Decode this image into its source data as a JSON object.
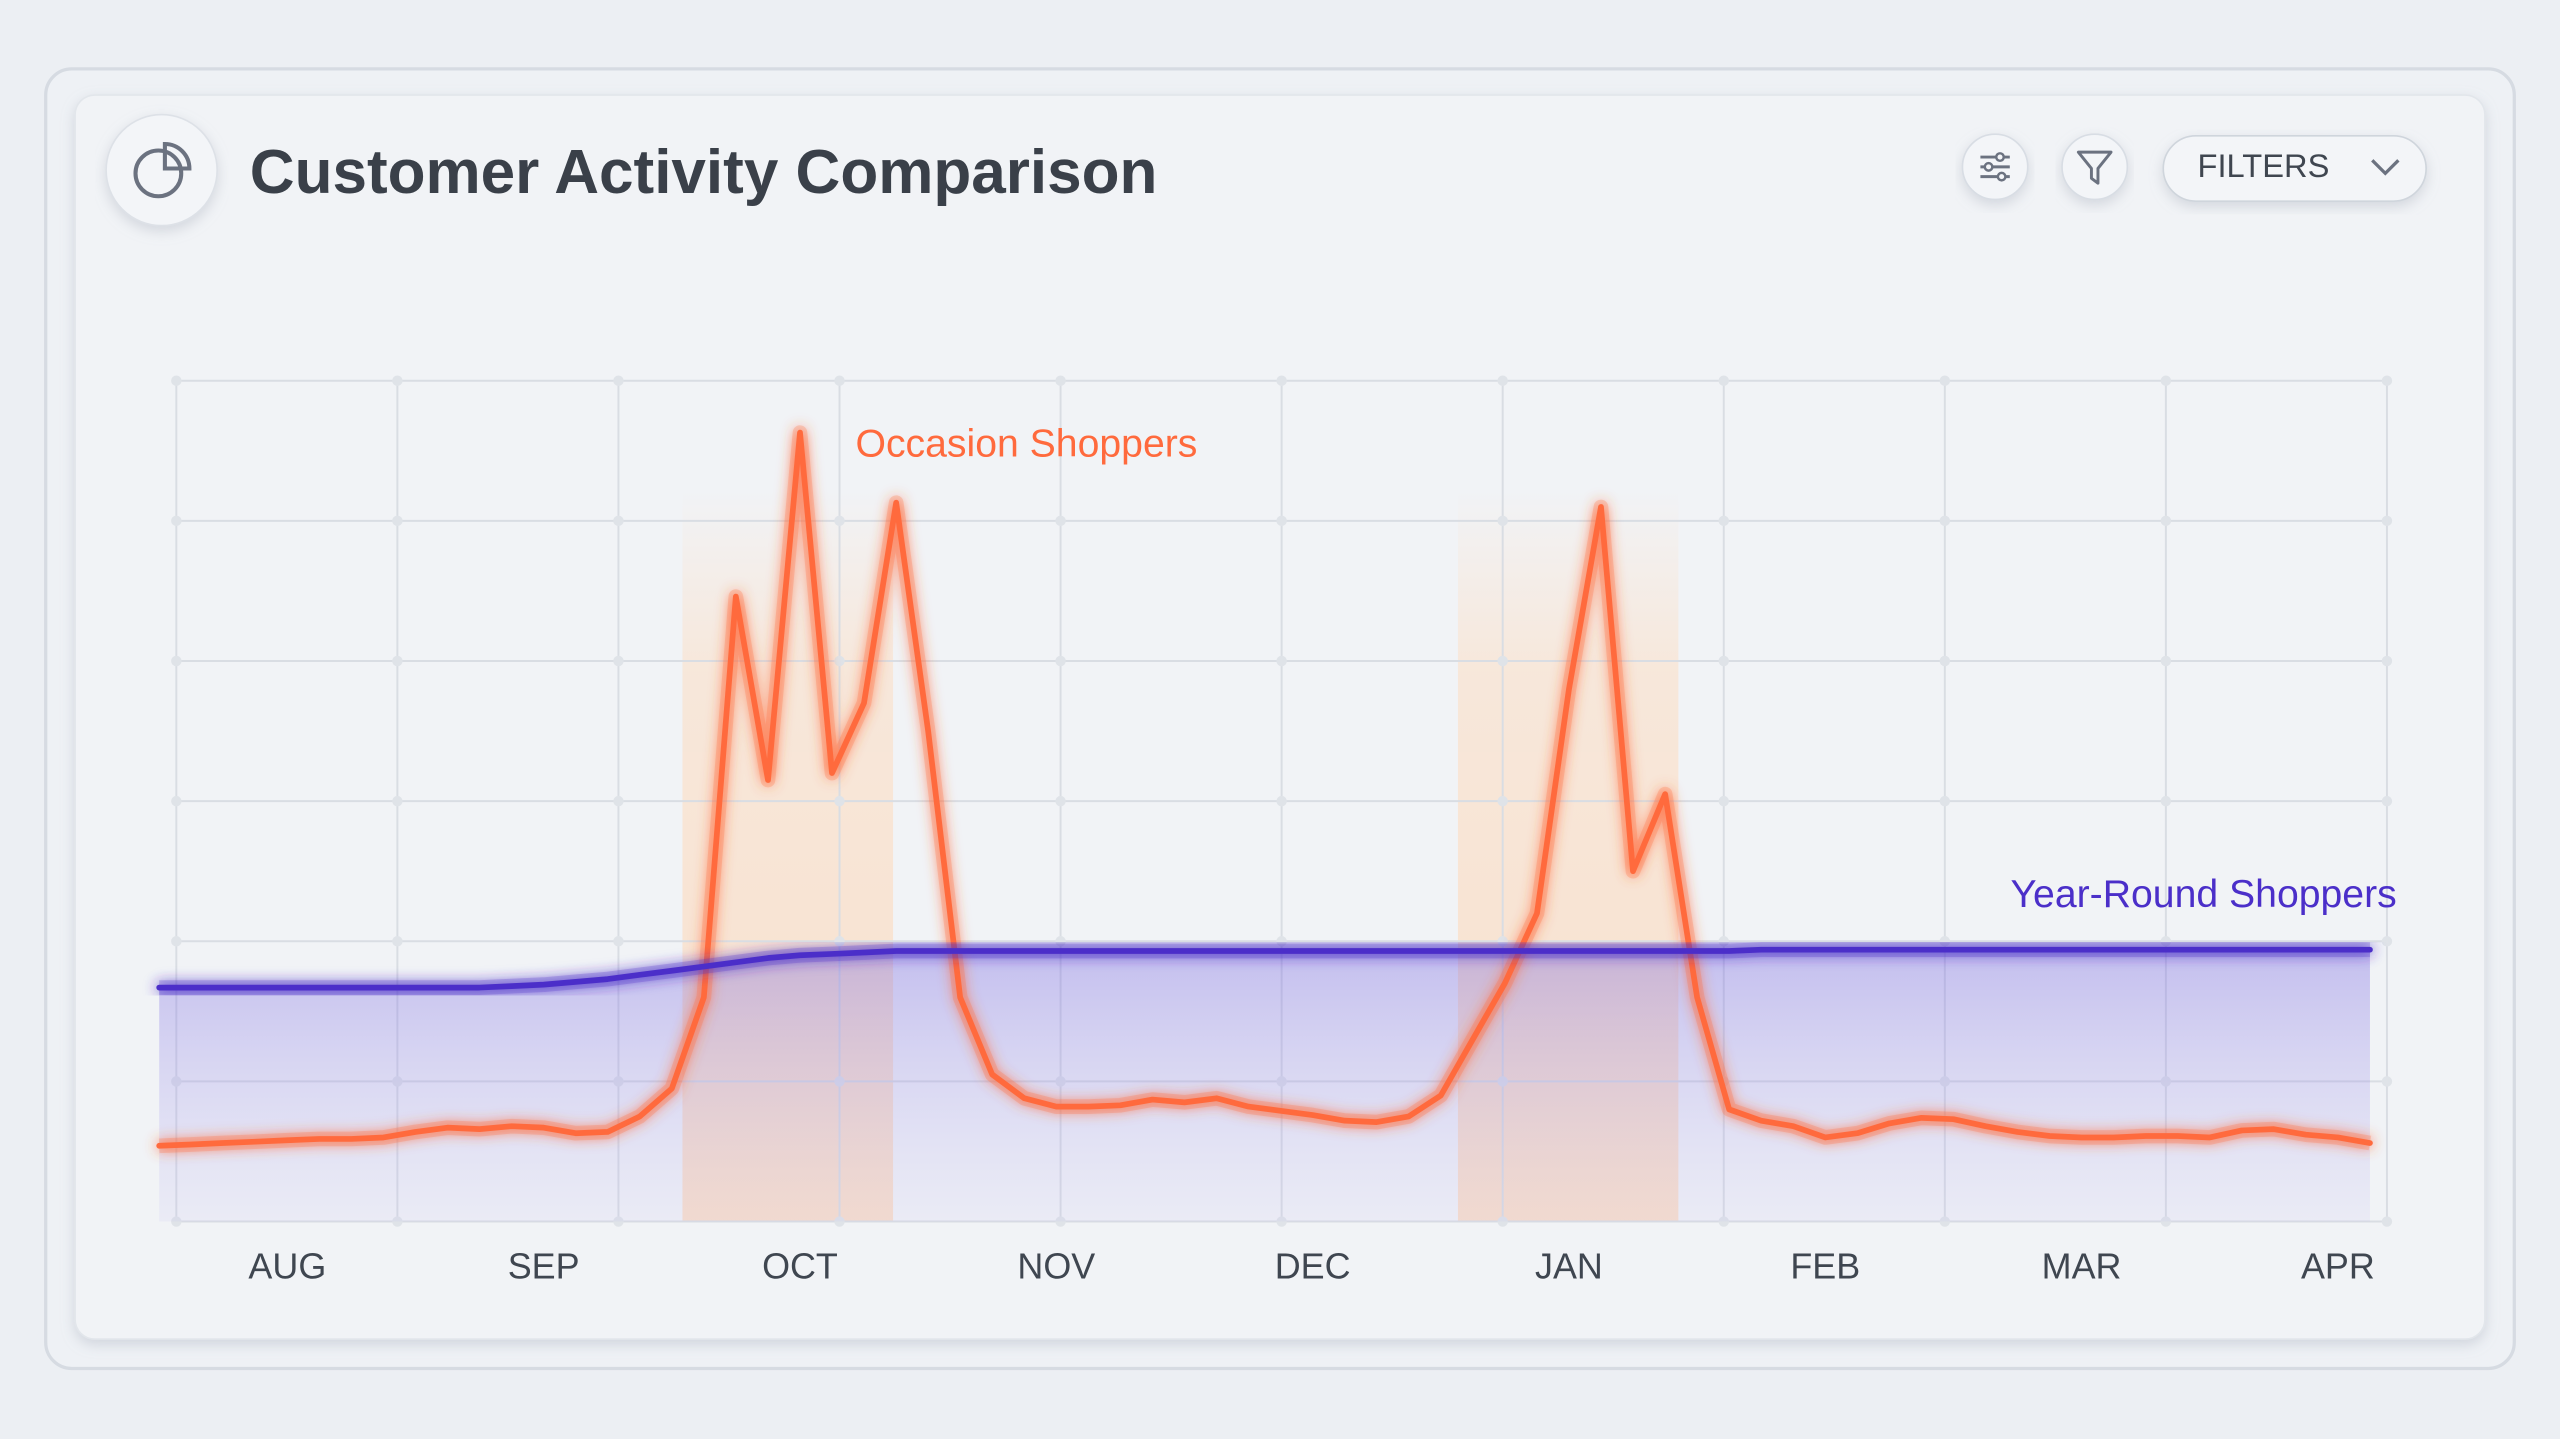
{
  "chart_data": {
    "type": "line",
    "title": "Customer Activity Comparison",
    "categories": [
      null,
      null,
      null,
      null,
      "AUG",
      null,
      null,
      null,
      null,
      null,
      null,
      null,
      "SEP",
      null,
      null,
      null,
      null,
      null,
      null,
      null,
      "OCT",
      null,
      null,
      null,
      null,
      null,
      null,
      null,
      "NOV",
      null,
      null,
      null,
      null,
      null,
      null,
      null,
      "DEC",
      null,
      null,
      null,
      null,
      null,
      null,
      null,
      "JAN",
      null,
      null,
      null,
      null,
      null,
      null,
      null,
      "FEB",
      null,
      null,
      null,
      null,
      null,
      null,
      null,
      "MAR",
      null,
      null,
      null,
      null,
      null,
      null,
      null,
      "APR",
      null
    ],
    "series": [
      {
        "name": "Occasion Shoppers",
        "color": "#ff6a3d",
        "values": [
          0.54,
          0.55,
          0.56,
          0.57,
          0.58,
          0.59,
          0.59,
          0.6,
          0.64,
          0.67,
          0.66,
          0.68,
          0.67,
          0.63,
          0.64,
          0.75,
          0.95,
          1.6,
          4.46,
          3.15,
          5.63,
          3.2,
          3.7,
          5.13,
          3.5,
          1.6,
          1.05,
          0.88,
          0.82,
          0.82,
          0.83,
          0.87,
          0.85,
          0.88,
          0.82,
          0.79,
          0.76,
          0.72,
          0.71,
          0.75,
          0.9,
          1.3,
          1.7,
          2.2,
          3.8,
          5.1,
          2.5,
          3.05,
          1.6,
          0.8,
          0.72,
          0.68,
          0.6,
          0.63,
          0.7,
          0.74,
          0.73,
          0.68,
          0.64,
          0.61,
          0.6,
          0.6,
          0.61,
          0.61,
          0.6,
          0.65,
          0.66,
          0.62,
          0.6,
          0.56
        ]
      },
      {
        "name": "Year-Round Shoppers",
        "color": "#4b2fc9",
        "values": [
          1.67,
          1.67,
          1.67,
          1.67,
          1.67,
          1.67,
          1.67,
          1.67,
          1.67,
          1.67,
          1.67,
          1.68,
          1.69,
          1.71,
          1.73,
          1.76,
          1.79,
          1.82,
          1.85,
          1.88,
          1.9,
          1.91,
          1.92,
          1.93,
          1.93,
          1.93,
          1.93,
          1.93,
          1.93,
          1.93,
          1.93,
          1.93,
          1.93,
          1.93,
          1.93,
          1.93,
          1.93,
          1.93,
          1.93,
          1.93,
          1.93,
          1.93,
          1.93,
          1.93,
          1.93,
          1.93,
          1.93,
          1.93,
          1.93,
          1.93,
          1.94,
          1.94,
          1.94,
          1.94,
          1.94,
          1.94,
          1.94,
          1.94,
          1.94,
          1.94,
          1.94,
          1.94,
          1.94,
          1.94,
          1.94,
          1.94,
          1.94,
          1.94,
          1.94,
          1.94
        ]
      }
    ],
    "ylim": [
      0,
      6
    ],
    "yticks": [
      0,
      1,
      2,
      3,
      4,
      5,
      6
    ],
    "grid": true
  },
  "toolbar": {
    "filters_label": "FILTERS"
  }
}
